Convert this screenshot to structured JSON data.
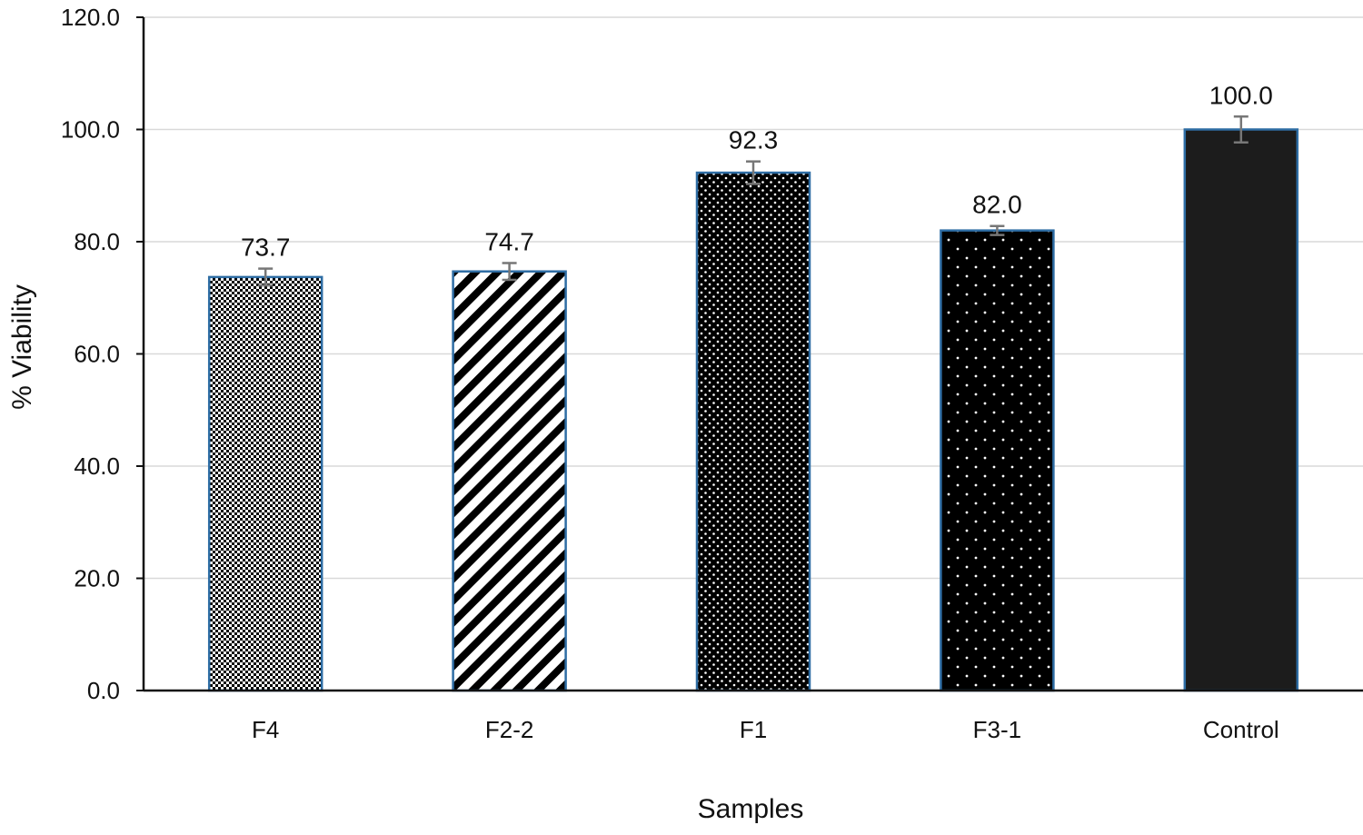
{
  "chart_data": {
    "type": "bar",
    "title": "",
    "xlabel": "Samples",
    "ylabel": "% Viability",
    "ylim": [
      0,
      120
    ],
    "grid": true,
    "categories": [
      "F4",
      "F2-2",
      "F1",
      "F3-1",
      "Control"
    ],
    "values": [
      73.7,
      74.7,
      92.3,
      82.0,
      100.0
    ],
    "value_labels": [
      "73.7",
      "74.7",
      "92.3",
      "82.0",
      "100.0"
    ],
    "error": [
      1.5,
      1.5,
      2.0,
      0.8,
      2.3
    ],
    "patterns": [
      "checker",
      "diagonal-stripes",
      "fine-dots",
      "sparse-dots",
      "solid"
    ],
    "yticks": [
      0,
      20,
      40,
      60,
      80,
      100,
      120
    ],
    "ytick_labels": [
      "0.0",
      "20.0",
      "40.0",
      "60.0",
      "80.0",
      "100.0",
      "120.0"
    ],
    "colors": {
      "bar_outline": "#2e6da4",
      "bar_fill": "#000000",
      "control_fill": "#1c1c1c",
      "error_bar": "#777777",
      "grid": "#d9d9d9",
      "axis": "#111111"
    }
  }
}
